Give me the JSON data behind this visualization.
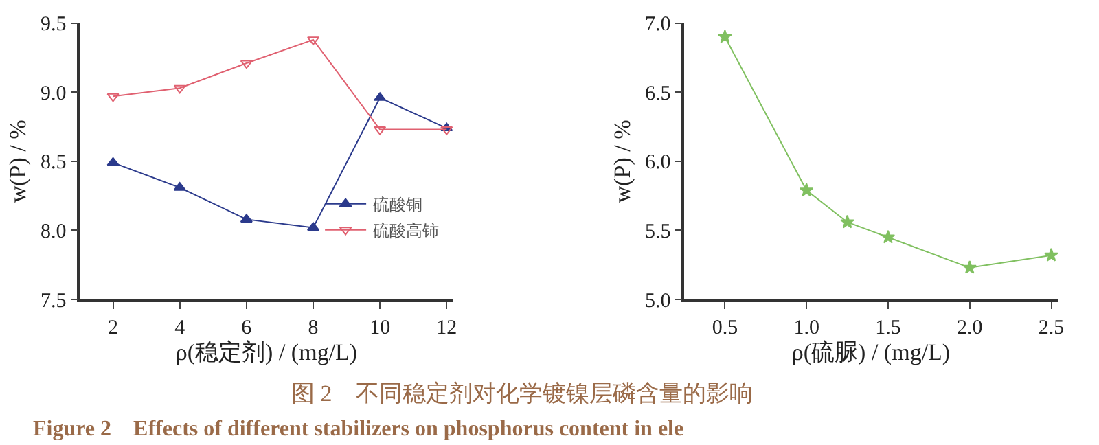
{
  "chart_data": [
    {
      "type": "line",
      "xlabel": "ρ(稳定剂) / (mg/L)",
      "ylabel": "w(P) / %",
      "xlim": [
        1,
        12.2
      ],
      "xticks": [
        2,
        4,
        6,
        8,
        10,
        12
      ],
      "ylim": [
        7.5,
        9.5
      ],
      "yticks": [
        7.5,
        {
          "value": 8,
          "label": "8.0"
        },
        8.5,
        {
          "value": 9,
          "label": "9.0"
        },
        9.5
      ],
      "legend": "bottom right",
      "x": [
        2,
        4,
        6,
        8,
        10,
        12
      ],
      "series": [
        {
          "name": "硫酸铜",
          "color": "#2b3a8c",
          "marker": "triangle",
          "values": [
            8.49,
            8.31,
            8.08,
            8.02,
            8.96,
            8.74
          ]
        },
        {
          "name": "硫酸高铈",
          "color": "#e06070",
          "marker": "triangle-down",
          "values": [
            8.97,
            9.03,
            9.21,
            9.38,
            8.73,
            8.73
          ]
        }
      ],
      "annotations": [
        "图 2　不同稳定剂对化学镀镍层磷含量的影响",
        "Figure 2　Effects of different stabilizers on phosphorus content in ele"
      ]
    },
    {
      "type": "line",
      "xlabel": "ρ(硫脲) / (mg/L)",
      "ylabel": "w(P) / %",
      "xlim": [
        0.25,
        2.54
      ],
      "xticks": [
        0.5,
        {
          "value": 1,
          "label": "1.0"
        },
        1.5,
        {
          "value": 2,
          "label": "2.0"
        },
        2.5
      ],
      "ylim": [
        5,
        7
      ],
      "yticks": [
        {
          "value": 5,
          "label": "5.0"
        },
        5.5,
        {
          "value": 6,
          "label": "6.0"
        },
        6.5,
        {
          "value": 7,
          "label": "7.0"
        }
      ],
      "legend": false,
      "x": [
        0.5,
        1.0,
        1.25,
        1.5,
        2.0,
        2.5
      ],
      "series": [
        {
          "color": "#80c060",
          "marker": "star",
          "values": [
            6.9,
            5.79,
            5.56,
            5.45,
            5.23,
            5.32
          ]
        }
      ]
    }
  ]
}
